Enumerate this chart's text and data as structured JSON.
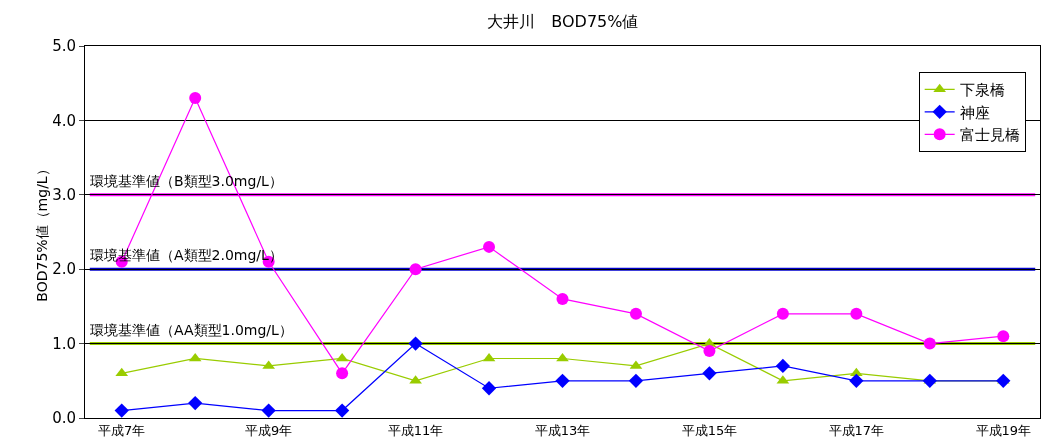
{
  "chart_data": {
    "type": "line",
    "title": "大井川　BOD75%値",
    "ylabel": "BOD75%値（mg/L）",
    "categories": [
      "平成7年",
      null,
      "平成9年",
      null,
      "平成11年",
      null,
      "平成13年",
      null,
      "平成15年",
      null,
      "平成17年",
      null,
      "平成19年"
    ],
    "series": [
      {
        "name": "下泉橋",
        "color": "#99cc00",
        "marker": "triangle",
        "values": [
          0.6,
          0.8,
          0.7,
          0.8,
          0.5,
          0.8,
          0.8,
          0.7,
          1.0,
          0.5,
          0.6,
          0.5,
          0.5
        ]
      },
      {
        "name": "神座",
        "color": "#0000ff",
        "marker": "diamond",
        "values": [
          0.1,
          0.2,
          0.1,
          0.1,
          1.0,
          0.4,
          0.5,
          0.5,
          0.6,
          0.7,
          0.5,
          0.5,
          0.5
        ]
      },
      {
        "name": "富士見橋",
        "color": "#ff00ff",
        "marker": "circle",
        "values": [
          2.1,
          4.3,
          2.1,
          0.6,
          2.0,
          2.3,
          1.6,
          1.4,
          0.9,
          1.4,
          1.4,
          1.0,
          1.1
        ]
      }
    ],
    "ylim": [
      0,
      5
    ],
    "yticks": [
      {
        "value": 0,
        "label": "0.0"
      },
      {
        "value": 1,
        "label": "1.0"
      },
      {
        "value": 2,
        "label": "2.0"
      },
      {
        "value": 3,
        "label": "3.0"
      },
      {
        "value": 4,
        "label": "4.0"
      },
      {
        "value": 5,
        "label": "5.0"
      }
    ],
    "grid": "y",
    "legend": "top right",
    "ref_lines": [
      {
        "axis": "y",
        "value": 3.0,
        "label": "環境基準値（B類型3.0mg/L）",
        "color": "#ff00ff"
      },
      {
        "axis": "y",
        "value": 2.0,
        "label": "環境基準値（A類型2.0mg/L）",
        "color": "#0000cc"
      },
      {
        "axis": "y",
        "value": 1.0,
        "label": "環境基準値（AA類型1.0mg/L）",
        "color": "#99cc00"
      }
    ]
  }
}
